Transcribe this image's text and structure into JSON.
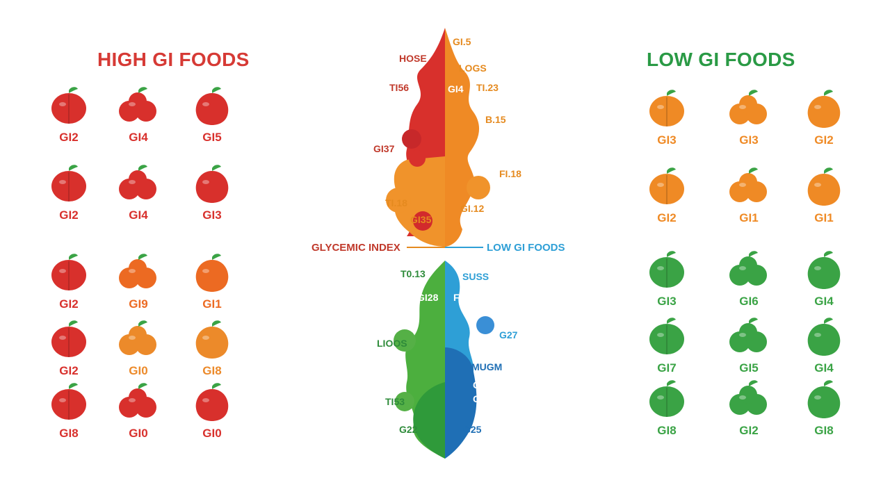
{
  "high_gi": {
    "title": "HIGH GI FOODS",
    "items": [
      {
        "label": "GI2",
        "color": "#d8302c"
      },
      {
        "label": "GI4",
        "color": "#d8302c"
      },
      {
        "label": "GI5",
        "color": "#d8302c"
      },
      {
        "label": "GI2",
        "color": "#d8302c"
      },
      {
        "label": "GI4",
        "color": "#d8302c"
      },
      {
        "label": "GI3",
        "color": "#d8302c"
      },
      {
        "label": "GI2",
        "color": "#d8302c"
      },
      {
        "label": "GI9",
        "color": "#ec6a22"
      },
      {
        "label": "GI1",
        "color": "#ec6a22"
      },
      {
        "label": "GI2",
        "color": "#d8302c"
      },
      {
        "label": "GI0",
        "color": "#ec8a2a"
      },
      {
        "label": "GI8",
        "color": "#ec8a2a"
      },
      {
        "label": "GI8",
        "color": "#d8302c"
      },
      {
        "label": "GI0",
        "color": "#d8302c"
      },
      {
        "label": "GI0",
        "color": "#d8302c"
      }
    ]
  },
  "low_gi": {
    "title": "LOW GI FOODS",
    "items": [
      {
        "label": "GI3",
        "color": "#ef8a25"
      },
      {
        "label": "GI3",
        "color": "#ef8a25"
      },
      {
        "label": "GI2",
        "color": "#ef8a25"
      },
      {
        "label": "GI2",
        "color": "#ef8a25"
      },
      {
        "label": "GI1",
        "color": "#ef8a25"
      },
      {
        "label": "GI1",
        "color": "#ef8a25"
      },
      {
        "label": "GI3",
        "color": "#3aa345"
      },
      {
        "label": "GI6",
        "color": "#3aa345"
      },
      {
        "label": "GI4",
        "color": "#3aa345"
      },
      {
        "label": "GI7",
        "color": "#3aa345"
      },
      {
        "label": "GI5",
        "color": "#3aa345"
      },
      {
        "label": "GI4",
        "color": "#3aa345"
      },
      {
        "label": "GI8",
        "color": "#3aa345"
      },
      {
        "label": "GI2",
        "color": "#3aa345"
      },
      {
        "label": "GI8",
        "color": "#3aa345"
      }
    ]
  },
  "center": {
    "legend_left": "GLYCEMIC INDEX",
    "legend_right": "LOW GI FOODS",
    "top_tags": [
      {
        "text": "GI.5",
        "color": "#e58a1f"
      },
      {
        "text": "HOSE",
        "color": "#c0392b"
      },
      {
        "text": "LOGS",
        "color": "#e58a1f"
      },
      {
        "text": "TI56",
        "color": "#c0392b"
      },
      {
        "text": "GI4",
        "color": "#ffffff"
      },
      {
        "text": "TI.23",
        "color": "#e58a1f"
      },
      {
        "text": "B.15",
        "color": "#e58a1f"
      },
      {
        "text": "GI37",
        "color": "#c0392b"
      },
      {
        "text": "FI.18",
        "color": "#e58a1f"
      },
      {
        "text": "TI.18",
        "color": "#e58a1f"
      },
      {
        "text": "GI.12",
        "color": "#e58a1f"
      },
      {
        "text": "GI35",
        "color": "#e58a1f"
      }
    ],
    "bottom_tags": [
      {
        "text": "T0.13",
        "color": "#2e8b3a"
      },
      {
        "text": "SUSS",
        "color": "#2e9fd6"
      },
      {
        "text": "GI28",
        "color": "#ffffff"
      },
      {
        "text": "FI8",
        "color": "#ffffff"
      },
      {
        "text": "G27",
        "color": "#2e9fd6"
      },
      {
        "text": "LIOOS",
        "color": "#2e8b3a"
      },
      {
        "text": "MUGM",
        "color": "#1f6fb5"
      },
      {
        "text": "GI0",
        "color": "#ffffff"
      },
      {
        "text": "GI8",
        "color": "#ffffff"
      },
      {
        "text": "TI53",
        "color": "#2e8b3a"
      },
      {
        "text": "G22",
        "color": "#2e8b3a"
      },
      {
        "text": "G25",
        "color": "#1f6fb5"
      }
    ]
  }
}
